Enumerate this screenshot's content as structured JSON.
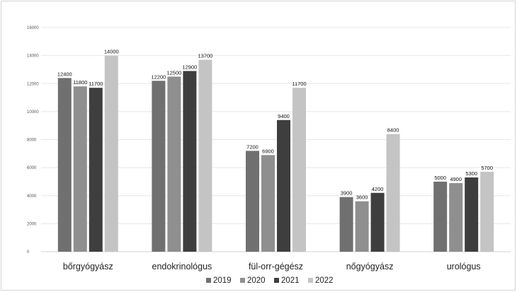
{
  "chart_data": {
    "type": "bar",
    "title": "",
    "xlabel": "",
    "ylabel": "",
    "categories": [
      "bőrgyógyász",
      "endokrinológus",
      "fül-orr-gégész",
      "nőgyógyász",
      "urológus"
    ],
    "series": [
      {
        "name": "2019",
        "values": [
          12400,
          12200,
          7200,
          3900,
          5000
        ],
        "color": "#707070"
      },
      {
        "name": "2020",
        "values": [
          11800,
          12500,
          6900,
          3600,
          4900
        ],
        "color": "#8f8f8f"
      },
      {
        "name": "2021",
        "values": [
          11700,
          12900,
          9400,
          4200,
          5300
        ],
        "color": "#3e3e3e"
      },
      {
        "name": "2022",
        "values": [
          14000,
          13700,
          11700,
          8400,
          5700
        ],
        "color": "#c4c4c4"
      }
    ],
    "ylim": [
      0,
      16000
    ],
    "yticks": [
      0,
      2000,
      4000,
      6000,
      8000,
      10000,
      12000,
      14000,
      16000
    ],
    "ytick_labels": [
      "0",
      "2000",
      "4000",
      "6000",
      "8000",
      "10000",
      "12000",
      "14000",
      "16000"
    ],
    "grid": true,
    "legend_position": "bottom"
  }
}
